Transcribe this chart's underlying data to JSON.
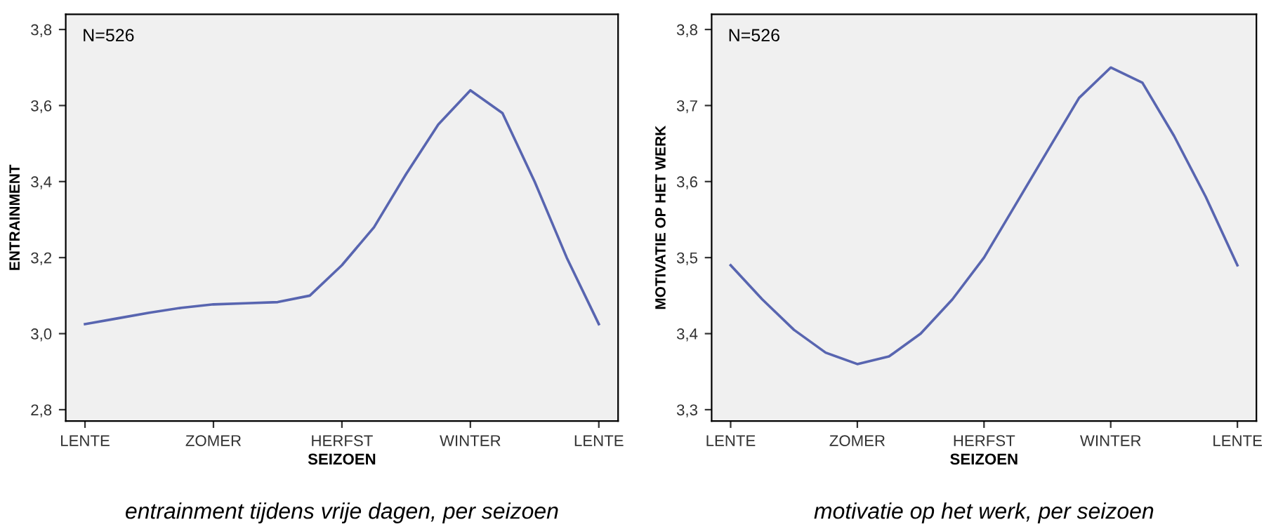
{
  "chart_data": [
    {
      "type": "line",
      "xlabel": "SEIZOEN",
      "ylabel": "ENTRAINMENT",
      "categories": [
        "LENTE",
        null,
        null,
        null,
        "ZOMER",
        null,
        null,
        null,
        "HERFST",
        null,
        null,
        null,
        "WINTER",
        null,
        null,
        null,
        "LENTE"
      ],
      "series": [
        {
          "color": "#5865b0",
          "values": [
            3.025,
            3.04,
            3.055,
            3.068,
            3.077,
            3.08,
            3.083,
            3.1,
            3.18,
            3.28,
            3.42,
            3.55,
            3.64,
            3.58,
            3.4,
            3.2,
            3.025
          ]
        }
      ],
      "ylim": [
        2.77,
        3.84
      ],
      "yticks": [
        {
          "value": 2.8,
          "label": "2,8"
        },
        {
          "value": 3.0,
          "label": "3,0"
        },
        {
          "value": 3.2,
          "label": "3,2"
        },
        {
          "value": 3.4,
          "label": "3,4"
        },
        {
          "value": 3.6,
          "label": "3,6"
        },
        {
          "value": 3.8,
          "label": "3,8"
        }
      ],
      "grid": false,
      "legend": false,
      "annotations": [
        "N=526",
        "entrainment tijdens vrije dagen, per seizoen"
      ]
    },
    {
      "type": "line",
      "xlabel": "SEIZOEN",
      "ylabel": "MOTIVATIE OP HET WERK",
      "categories": [
        "LENTE",
        null,
        null,
        null,
        "ZOMER",
        null,
        null,
        null,
        "HERFST",
        null,
        null,
        null,
        "WINTER",
        null,
        null,
        null,
        "LENTE"
      ],
      "series": [
        {
          "color": "#5865b0",
          "values": [
            3.49,
            3.445,
            3.405,
            3.375,
            3.36,
            3.37,
            3.4,
            3.445,
            3.5,
            3.57,
            3.64,
            3.71,
            3.75,
            3.73,
            3.66,
            3.58,
            3.49
          ]
        }
      ],
      "ylim": [
        3.285,
        3.82
      ],
      "yticks": [
        {
          "value": 3.3,
          "label": "3,3"
        },
        {
          "value": 3.4,
          "label": "3,4"
        },
        {
          "value": 3.5,
          "label": "3,5"
        },
        {
          "value": 3.6,
          "label": "3,6"
        },
        {
          "value": 3.7,
          "label": "3,7"
        },
        {
          "value": 3.8,
          "label": "3,8"
        }
      ],
      "grid": false,
      "legend": false,
      "annotations": [
        "N=526",
        "motivatie op het werk, per seizoen"
      ]
    }
  ]
}
